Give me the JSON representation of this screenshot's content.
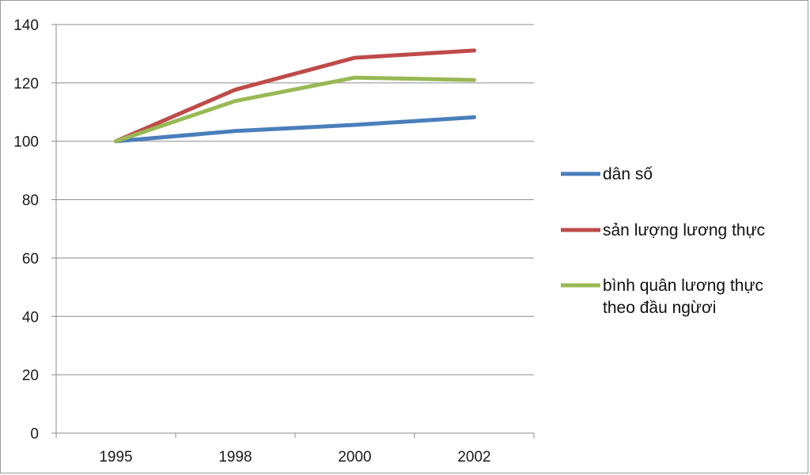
{
  "chart_data": {
    "type": "line",
    "title": "",
    "xlabel": "",
    "ylabel": "",
    "x": [
      "1995",
      "1998",
      "2000",
      "2002"
    ],
    "ylim": [
      0,
      140
    ],
    "yticks": [
      "0",
      "20",
      "40",
      "60",
      "80",
      "100",
      "120",
      "140"
    ],
    "grid": true,
    "legend_position": "right",
    "series": [
      {
        "name": "dân số",
        "color": "#4a7ebb",
        "values": [
          100,
          103.5,
          105.6,
          108.2
        ]
      },
      {
        "name": "sản lượng lương thực",
        "color": "#be4b48",
        "values": [
          100,
          117.7,
          128.6,
          131.1
        ]
      },
      {
        "name_lines": [
          "bình quân lương thực",
          "theo đầu ngừơi"
        ],
        "color": "#98b954",
        "values": [
          100,
          113.8,
          121.8,
          121.0
        ]
      }
    ]
  }
}
